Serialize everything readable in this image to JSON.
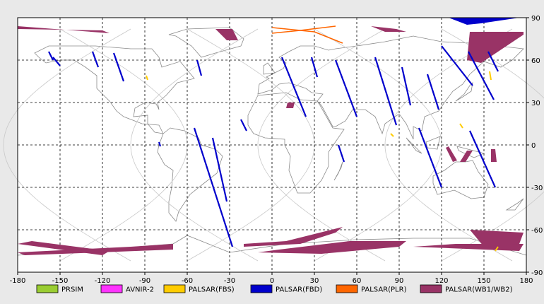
{
  "map": {
    "projection": "equirectangular",
    "lon_range": [
      -180,
      180
    ],
    "lat_range": [
      -90,
      90
    ],
    "x_ticks": [
      -180,
      -150,
      -120,
      -90,
      -60,
      -30,
      0,
      30,
      60,
      90,
      120,
      150,
      180
    ],
    "y_ticks": [
      90,
      60,
      30,
      0,
      -30,
      -60,
      -90
    ],
    "x_tick_labels": [
      "-180",
      "-150",
      "-120",
      "-90",
      "-60",
      "-30",
      "0",
      "30",
      "60",
      "90",
      "120",
      "150",
      "180"
    ],
    "y_tick_labels": [
      "90",
      "60",
      "30",
      "0",
      "-30",
      "-60",
      "-90"
    ],
    "grid": true,
    "colors": {
      "background": "#e9e9e9",
      "plot_area": "#ffffff",
      "coastline": "#8a8a8a",
      "orbit_track": "#c8c8c8",
      "grid": "#000000"
    }
  },
  "legend": [
    {
      "label": "PRSIM",
      "color": "#9acd32"
    },
    {
      "label": "AVNIR-2",
      "color": "#ff33ff"
    },
    {
      "label": "PALSAR(FBS)",
      "color": "#ffcc00"
    },
    {
      "label": "PALSAR(FBD)",
      "color": "#0000cc"
    },
    {
      "label": "PALSAR(PLR)",
      "color": "#ff6600"
    },
    {
      "label": "PALSAR(WB1/WB2)",
      "color": "#993366"
    }
  ],
  "swaths": {
    "fbd": [
      [
        [
          -158,
          66
        ],
        [
          -155,
          60
        ]
      ],
      [
        [
          -127,
          66
        ],
        [
          -123,
          55
        ]
      ],
      [
        [
          -112,
          65
        ],
        [
          -105,
          45
        ]
      ],
      [
        [
          -53,
          60
        ],
        [
          -50,
          49
        ]
      ],
      [
        [
          -80,
          2
        ],
        [
          -79,
          -1
        ]
      ],
      [
        [
          -55,
          12
        ],
        [
          -28,
          -72
        ]
      ],
      [
        [
          -42,
          5
        ],
        [
          -32,
          -40
        ]
      ],
      [
        [
          7,
          62
        ],
        [
          24,
          20
        ]
      ],
      [
        [
          28,
          62
        ],
        [
          32,
          48
        ]
      ],
      [
        [
          45,
          60
        ],
        [
          60,
          20
        ]
      ],
      [
        [
          73,
          62
        ],
        [
          88,
          14
        ]
      ],
      [
        [
          92,
          55
        ],
        [
          98,
          28
        ]
      ],
      [
        [
          110,
          50
        ],
        [
          118,
          25
        ]
      ],
      [
        [
          104,
          12
        ],
        [
          120,
          -30
        ]
      ],
      [
        [
          139,
          66
        ],
        [
          157,
          32
        ]
      ],
      [
        [
          120,
          70
        ],
        [
          142,
          42
        ]
      ],
      [
        [
          140,
          10
        ],
        [
          158,
          -30
        ]
      ],
      [
        [
          -22,
          18
        ],
        [
          -18,
          10
        ]
      ],
      [
        [
          -155,
          62
        ],
        [
          -150,
          56
        ]
      ],
      [
        [
          47,
          0
        ],
        [
          51,
          -12
        ]
      ],
      [
        [
          153,
          66
        ],
        [
          160,
          52
        ]
      ]
    ],
    "fbd_top": [
      [
        [
          125,
          90
        ],
        [
          150,
          90
        ],
        [
          175,
          90
        ],
        [
          148,
          86
        ],
        [
          138,
          85
        ],
        [
          125,
          90
        ]
      ]
    ],
    "wb": [
      [
        [
          -180,
          84
        ],
        [
          -115,
          79
        ],
        [
          -120,
          81
        ],
        [
          -180,
          82
        ]
      ],
      [
        [
          -40,
          82
        ],
        [
          -28,
          82
        ],
        [
          -24,
          74
        ],
        [
          -32,
          74
        ]
      ],
      [
        [
          70,
          84
        ],
        [
          88,
          82
        ],
        [
          95,
          80
        ],
        [
          80,
          80
        ]
      ],
      [
        [
          140,
          80
        ],
        [
          178,
          80
        ],
        [
          178,
          78
        ],
        [
          148,
          58
        ],
        [
          138,
          60
        ]
      ],
      [
        [
          -180,
          -70
        ],
        [
          -120,
          -78
        ],
        [
          -115,
          -75
        ],
        [
          -170,
          -68
        ]
      ],
      [
        [
          -180,
          -76
        ],
        [
          -175,
          -78
        ],
        [
          -70,
          -74
        ],
        [
          -70,
          -70
        ],
        [
          -100,
          -72
        ]
      ],
      [
        [
          -10,
          -76
        ],
        [
          35,
          -77
        ],
        [
          90,
          -72
        ],
        [
          95,
          -68
        ],
        [
          55,
          -68
        ],
        [
          5,
          -74
        ]
      ],
      [
        [
          -20,
          -72
        ],
        [
          20,
          -70
        ],
        [
          45,
          -62
        ],
        [
          50,
          -58
        ],
        [
          10,
          -68
        ],
        [
          -20,
          -70
        ]
      ],
      [
        [
          100,
          -72
        ],
        [
          175,
          -75
        ],
        [
          178,
          -70
        ],
        [
          130,
          -70
        ]
      ],
      [
        [
          140,
          -60
        ],
        [
          178,
          -62
        ],
        [
          175,
          -70
        ],
        [
          150,
          -72
        ]
      ],
      [
        [
          10,
          26
        ],
        [
          15,
          26
        ],
        [
          16,
          30
        ],
        [
          11,
          30
        ]
      ],
      [
        [
          123,
          -2
        ],
        [
          125,
          -1
        ],
        [
          131,
          -11
        ],
        [
          128,
          -12
        ]
      ],
      [
        [
          133,
          -12
        ],
        [
          137,
          -12
        ],
        [
          142,
          -4
        ],
        [
          138,
          -4
        ]
      ],
      [
        [
          155,
          -12
        ],
        [
          159,
          -12
        ],
        [
          158,
          -3
        ],
        [
          155,
          -3
        ]
      ]
    ],
    "plr_lines": [
      [
        [
          0,
          83
        ],
        [
          30,
          80
        ],
        [
          50,
          72
        ]
      ],
      [
        [
          0,
          79
        ],
        [
          20,
          81
        ],
        [
          45,
          84
        ]
      ]
    ],
    "fbs_lines": [
      [
        [
          -89,
          49
        ],
        [
          -88,
          46
        ]
      ],
      [
        [
          154,
          52
        ],
        [
          155,
          46
        ]
      ],
      [
        [
          158,
          -75
        ],
        [
          160,
          -72
        ]
      ],
      [
        [
          133,
          15
        ],
        [
          135,
          12
        ]
      ],
      [
        [
          84,
          8
        ],
        [
          86,
          6
        ]
      ]
    ]
  },
  "orbits": {
    "ascending": [
      -150,
      -60,
      30,
      120
    ],
    "descending": [
      -100,
      -10,
      80,
      170
    ]
  },
  "land": [
    [
      [
        -168,
        65
      ],
      [
        -158,
        70
      ],
      [
        -140,
        70
      ],
      [
        -125,
        70
      ],
      [
        -100,
        68
      ],
      [
        -85,
        68
      ],
      [
        -80,
        62
      ],
      [
        -78,
        55
      ],
      [
        -65,
        59
      ],
      [
        -60,
        53
      ],
      [
        -55,
        47
      ],
      [
        -67,
        44
      ],
      [
        -75,
        35
      ],
      [
        -81,
        30
      ],
      [
        -80,
        25
      ],
      [
        -82,
        29
      ],
      [
        -90,
        30
      ],
      [
        -97,
        26
      ],
      [
        -98,
        20
      ],
      [
        -88,
        21
      ],
      [
        -88,
        15
      ],
      [
        -83,
        9
      ],
      [
        -77,
        8
      ],
      [
        -80,
        14
      ],
      [
        -92,
        15
      ],
      [
        -105,
        20
      ],
      [
        -110,
        24
      ],
      [
        -115,
        31
      ],
      [
        -118,
        34
      ],
      [
        -124,
        40
      ],
      [
        -124,
        49
      ],
      [
        -132,
        55
      ],
      [
        -140,
        60
      ],
      [
        -150,
        60
      ],
      [
        -160,
        58
      ],
      [
        -165,
        62
      ]
    ],
    [
      [
        -77,
        8
      ],
      [
        -72,
        12
      ],
      [
        -62,
        10
      ],
      [
        -52,
        5
      ],
      [
        -50,
        0
      ],
      [
        -40,
        -3
      ],
      [
        -35,
        -8
      ],
      [
        -39,
        -20
      ],
      [
        -48,
        -27
      ],
      [
        -58,
        -35
      ],
      [
        -66,
        -47
      ],
      [
        -68,
        -54
      ],
      [
        -73,
        -48
      ],
      [
        -73,
        -40
      ],
      [
        -71,
        -30
      ],
      [
        -70,
        -18
      ],
      [
        -76,
        -14
      ],
      [
        -81,
        -5
      ],
      [
        -80,
        0
      ]
    ],
    [
      [
        -10,
        36
      ],
      [
        -9,
        43
      ],
      [
        -2,
        47
      ],
      [
        -4,
        48
      ],
      [
        2,
        51
      ],
      [
        8,
        54
      ],
      [
        10,
        58
      ],
      [
        5,
        62
      ],
      [
        12,
        66
      ],
      [
        20,
        70
      ],
      [
        30,
        70
      ],
      [
        40,
        67
      ],
      [
        45,
        68
      ],
      [
        60,
        70
      ],
      [
        80,
        73
      ],
      [
        100,
        77
      ],
      [
        120,
        73
      ],
      [
        140,
        72
      ],
      [
        160,
        70
      ],
      [
        178,
        68
      ],
      [
        170,
        60
      ],
      [
        162,
        55
      ],
      [
        150,
        59
      ],
      [
        140,
        50
      ],
      [
        135,
        43
      ],
      [
        128,
        38
      ],
      [
        122,
        30
      ],
      [
        118,
        24
      ],
      [
        108,
        20
      ],
      [
        106,
        10
      ],
      [
        100,
        13
      ],
      [
        100,
        4
      ],
      [
        95,
        15
      ],
      [
        90,
        22
      ],
      [
        80,
        15
      ],
      [
        78,
        8
      ],
      [
        73,
        20
      ],
      [
        66,
        25
      ],
      [
        57,
        25
      ],
      [
        52,
        17
      ],
      [
        45,
        13
      ],
      [
        43,
        13
      ],
      [
        35,
        28
      ],
      [
        32,
        31
      ],
      [
        36,
        36
      ],
      [
        28,
        37
      ],
      [
        24,
        40
      ],
      [
        12,
        44
      ],
      [
        5,
        43
      ],
      [
        0,
        39
      ]
    ],
    [
      [
        -17,
        21
      ],
      [
        -10,
        35
      ],
      [
        0,
        36
      ],
      [
        10,
        37
      ],
      [
        20,
        32
      ],
      [
        32,
        31
      ],
      [
        34,
        28
      ],
      [
        43,
        12
      ],
      [
        51,
        11
      ],
      [
        40,
        -5
      ],
      [
        40,
        -15
      ],
      [
        35,
        -25
      ],
      [
        27,
        -34
      ],
      [
        18,
        -34
      ],
      [
        12,
        -18
      ],
      [
        13,
        -8
      ],
      [
        9,
        0
      ],
      [
        9,
        4
      ],
      [
        -5,
        5
      ],
      [
        -13,
        8
      ],
      [
        -17,
        14
      ]
    ],
    [
      [
        44,
        -25
      ],
      [
        49,
        -16
      ],
      [
        50,
        -12
      ],
      [
        47,
        -20
      ]
    ],
    [
      [
        114,
        -22
      ],
      [
        122,
        -18
      ],
      [
        130,
        -12
      ],
      [
        137,
        -12
      ],
      [
        142,
        -11
      ],
      [
        146,
        -19
      ],
      [
        153,
        -28
      ],
      [
        150,
        -37
      ],
      [
        141,
        -38
      ],
      [
        135,
        -35
      ],
      [
        129,
        -32
      ],
      [
        117,
        -35
      ],
      [
        114,
        -27
      ]
    ],
    [
      [
        -73,
        78
      ],
      [
        -60,
        82
      ],
      [
        -30,
        83
      ],
      [
        -20,
        75
      ],
      [
        -22,
        70
      ],
      [
        -40,
        65
      ],
      [
        -50,
        62
      ],
      [
        -57,
        70
      ],
      [
        -68,
        77
      ]
    ],
    [
      [
        -180,
        -78
      ],
      [
        -120,
        -74
      ],
      [
        -70,
        -70
      ],
      [
        -60,
        -64
      ],
      [
        -30,
        -76
      ],
      [
        10,
        -70
      ],
      [
        60,
        -67
      ],
      [
        100,
        -66
      ],
      [
        140,
        -66
      ],
      [
        180,
        -78
      ],
      [
        180,
        -90
      ],
      [
        -180,
        -90
      ]
    ],
    [
      [
        130,
        31
      ],
      [
        135,
        34
      ],
      [
        141,
        38
      ],
      [
        142,
        44
      ],
      [
        140,
        42
      ],
      [
        136,
        36
      ]
    ],
    [
      [
        -6,
        50
      ],
      [
        2,
        51
      ],
      [
        0,
        54
      ],
      [
        -3,
        58
      ],
      [
        -6,
        56
      ]
    ],
    [
      [
        95,
        5
      ],
      [
        106,
        -6
      ],
      [
        102,
        -4
      ]
    ],
    [
      [
        109,
        2
      ],
      [
        119,
        6
      ],
      [
        117,
        -3
      ],
      [
        110,
        -2
      ]
    ],
    [
      [
        131,
        -1
      ],
      [
        150,
        -6
      ],
      [
        143,
        -9
      ],
      [
        132,
        -4
      ]
    ],
    [
      [
        166,
        -46
      ],
      [
        174,
        -41
      ],
      [
        178,
        -38
      ],
      [
        172,
        -46
      ]
    ]
  ]
}
